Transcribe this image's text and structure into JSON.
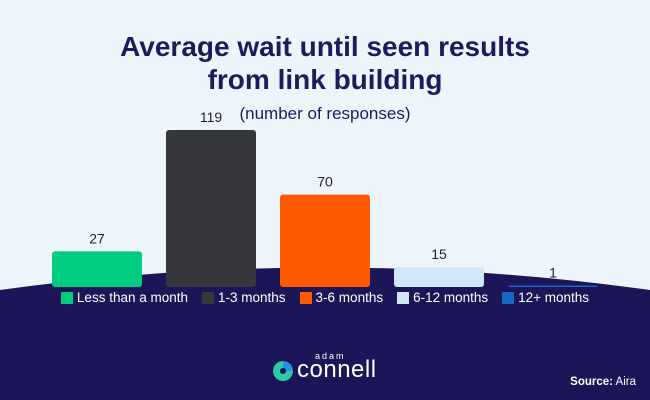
{
  "chart_data": {
    "type": "bar",
    "title_line1": "Average wait until seen results",
    "title_line2": "from link building",
    "subtitle": "(number of responses)",
    "categories": [
      "Less than a month",
      "1-3 months",
      "3-6 months",
      "6-12 months",
      "12+ months"
    ],
    "values": [
      27,
      119,
      70,
      15,
      1
    ],
    "value_labels": [
      "27",
      "119",
      "70",
      "15",
      "1"
    ],
    "colors": [
      "#00cc80",
      "#35373b",
      "#ff5a00",
      "#cfe7f8",
      "#1666c6"
    ],
    "ylim": [
      0,
      119
    ],
    "legend_position": "bottom"
  },
  "brand": {
    "small": "adam",
    "name": "connell"
  },
  "source": {
    "label": "Source:",
    "value": "Aira"
  },
  "theme": {
    "background": "#eef5fa",
    "navy": "#1c1558",
    "title_color": "#1f1a5c"
  }
}
